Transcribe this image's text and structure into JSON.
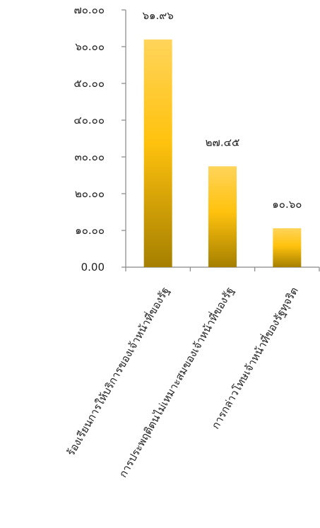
{
  "chart_data": {
    "type": "bar",
    "categories": [
      "ร้องเรียนการให้บริการของเจ้าหน้าที่ของรัฐ",
      "การประพฤติตนไม่เหมาะสมของเจ้าหน้าที่ของรัฐ",
      "การกล่าวโทษเจ้าหน้าที่ของรัฐทุจริต"
    ],
    "values": [
      61.96,
      27.45,
      10.6
    ],
    "data_labels": [
      "๖๑.๙๖",
      "๒๗.๔๕",
      "๑๐.๖๐"
    ],
    "ylim": [
      0,
      70
    ],
    "yticks": [
      0,
      10,
      20,
      30,
      40,
      50,
      60,
      70
    ],
    "ytick_labels": [
      "0.00",
      "๑๐.๐๐",
      "๒๐.๐๐",
      "๓๐.๐๐",
      "๔๐.๐๐",
      "๕๐.๐๐",
      "๖๐.๐๐",
      "๗๐.๐๐"
    ],
    "title": "",
    "xlabel": "",
    "ylabel": "",
    "grid": false,
    "legend": "none",
    "colors": {
      "bar_top": "#ffd45a",
      "bar_mid": "#ffc20e",
      "bar_bottom": "#a57f00",
      "axis": "#868686"
    }
  }
}
